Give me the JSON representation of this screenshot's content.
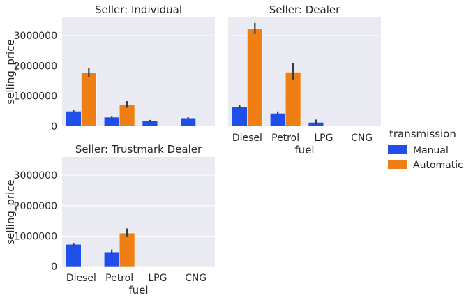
{
  "chart_data": {
    "type": "bar",
    "categories": [
      "Diesel",
      "Petrol",
      "LPG",
      "CNG"
    ],
    "xlabel": "fuel",
    "ylabel": "selling_price",
    "ylim": [
      0,
      3600000
    ],
    "yticks": [
      0,
      1000000,
      2000000,
      3000000
    ],
    "grid": true,
    "legend": {
      "title": "transmission",
      "position": "right",
      "entries": [
        "Manual",
        "Automatic"
      ]
    },
    "colors": {
      "Manual": "#1f4ee8",
      "Automatic": "#ef7e14"
    },
    "panels": [
      {
        "title": "Seller: Individual",
        "series": [
          {
            "name": "Manual",
            "values": [
              500000,
              300000,
              170000,
              275000
            ],
            "err_low": [
              460000,
              270000,
              140000,
              250000
            ],
            "err_high": [
              550000,
              340000,
              210000,
              310000
            ]
          },
          {
            "name": "Automatic",
            "values": [
              1770000,
              700000,
              null,
              null
            ],
            "err_low": [
              1630000,
              610000,
              null,
              null
            ],
            "err_high": [
              1930000,
              830000,
              null,
              null
            ]
          }
        ]
      },
      {
        "title": "Seller: Dealer",
        "series": [
          {
            "name": "Manual",
            "values": [
              640000,
              430000,
              130000,
              null
            ],
            "err_low": [
              590000,
              390000,
              60000,
              null
            ],
            "err_high": [
              700000,
              490000,
              220000,
              null
            ]
          },
          {
            "name": "Automatic",
            "values": [
              3230000,
              1790000,
              null,
              null
            ],
            "err_low": [
              3050000,
              1550000,
              null,
              null
            ],
            "err_high": [
              3420000,
              2080000,
              null,
              null
            ]
          }
        ]
      },
      {
        "title": "Seller: Trustmark Dealer",
        "series": [
          {
            "name": "Manual",
            "values": [
              730000,
              480000,
              null,
              null
            ],
            "err_low": [
              690000,
              420000,
              null,
              null
            ],
            "err_high": [
              780000,
              560000,
              null,
              null
            ]
          },
          {
            "name": "Automatic",
            "values": [
              null,
              1100000,
              null,
              null
            ],
            "err_low": [
              null,
              990000,
              null,
              null
            ],
            "err_high": [
              null,
              1250000,
              null,
              null
            ]
          }
        ]
      }
    ]
  }
}
